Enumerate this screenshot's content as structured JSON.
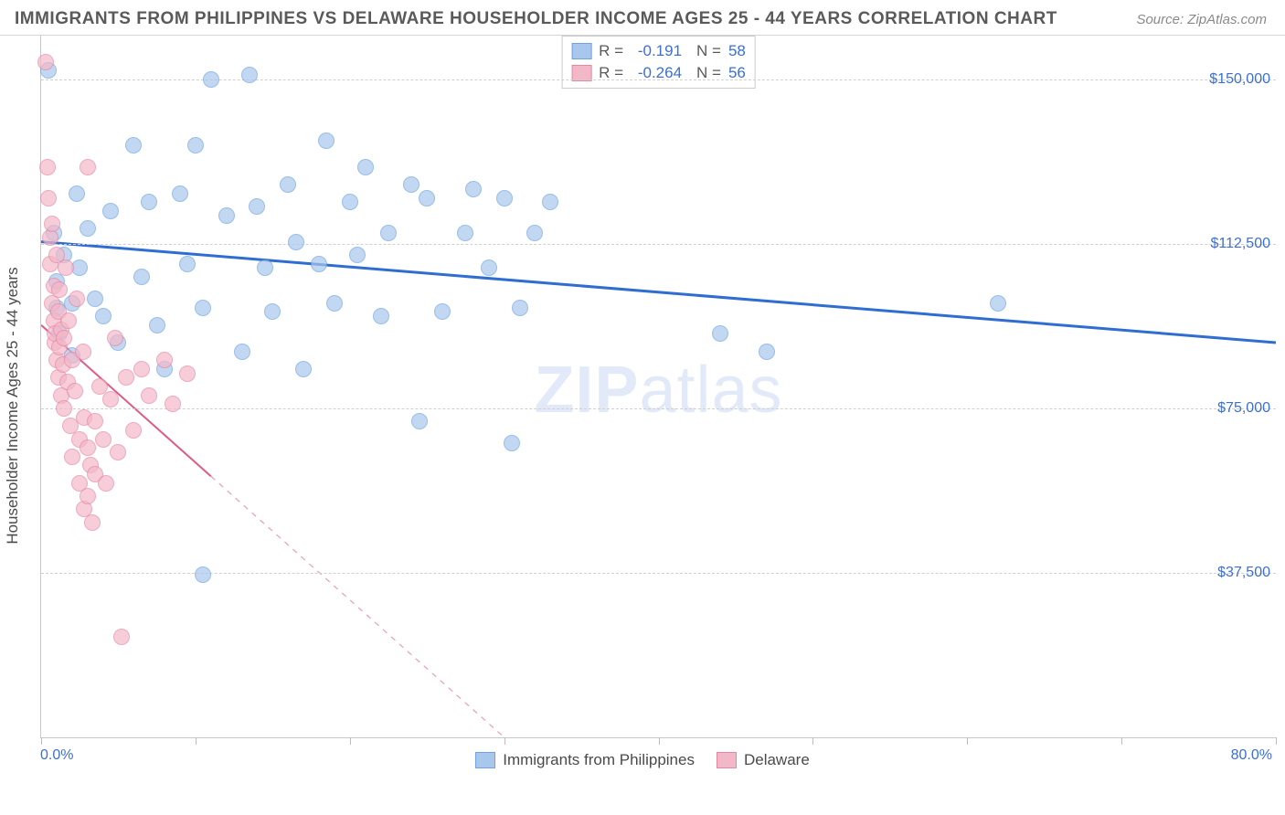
{
  "header": {
    "title": "IMMIGRANTS FROM PHILIPPINES VS DELAWARE HOUSEHOLDER INCOME AGES 25 - 44 YEARS CORRELATION CHART",
    "source": "Source: ZipAtlas.com"
  },
  "watermark": {
    "zip": "ZIP",
    "atlas": "atlas"
  },
  "chart": {
    "type": "scatter",
    "background_color": "#ffffff",
    "grid_color": "#d0d0d0",
    "axis_color": "#c9c9c9",
    "label_color": "#3b6fd6",
    "text_color": "#5a5a5a",
    "yaxis_title": "Householder Income Ages 25 - 44 years",
    "xlim": [
      0,
      80
    ],
    "ylim": [
      0,
      160000
    ],
    "xticks_pct": [
      0,
      10,
      20,
      30,
      40,
      50,
      60,
      70,
      80
    ],
    "yticks": [
      37500,
      75000,
      112500,
      150000
    ],
    "ytick_labels": [
      "$37,500",
      "$75,000",
      "$112,500",
      "$150,000"
    ],
    "xlabels": {
      "min": "0.0%",
      "max": "80.0%"
    },
    "marker_radius": 9,
    "marker_opacity": 0.35,
    "series": [
      {
        "name": "Immigrants from Philippines",
        "fill": "#a9c7ec",
        "stroke": "#6ea3df",
        "line_color": "#2f6ed0",
        "line_width": 3,
        "r": -0.191,
        "n": 58,
        "trend": {
          "x1": 0,
          "y1": 113000,
          "x2": 80,
          "y2": 90000,
          "dashed_from_x": null
        },
        "points": [
          {
            "x": 0.5,
            "y": 152000
          },
          {
            "x": 0.8,
            "y": 115000
          },
          {
            "x": 1.0,
            "y": 104000
          },
          {
            "x": 1.0,
            "y": 98000
          },
          {
            "x": 1.2,
            "y": 92000
          },
          {
            "x": 1.5,
            "y": 110000
          },
          {
            "x": 2.0,
            "y": 99000
          },
          {
            "x": 2.0,
            "y": 87000
          },
          {
            "x": 2.3,
            "y": 124000
          },
          {
            "x": 2.5,
            "y": 107000
          },
          {
            "x": 3.0,
            "y": 116000
          },
          {
            "x": 3.5,
            "y": 100000
          },
          {
            "x": 4.0,
            "y": 96000
          },
          {
            "x": 4.5,
            "y": 120000
          },
          {
            "x": 5.0,
            "y": 90000
          },
          {
            "x": 6.0,
            "y": 135000
          },
          {
            "x": 6.5,
            "y": 105000
          },
          {
            "x": 7.0,
            "y": 122000
          },
          {
            "x": 7.5,
            "y": 94000
          },
          {
            "x": 8.0,
            "y": 84000
          },
          {
            "x": 9.0,
            "y": 124000
          },
          {
            "x": 9.5,
            "y": 108000
          },
          {
            "x": 10.0,
            "y": 135000
          },
          {
            "x": 10.5,
            "y": 98000
          },
          {
            "x": 10.5,
            "y": 37000
          },
          {
            "x": 11.0,
            "y": 150000
          },
          {
            "x": 12.0,
            "y": 119000
          },
          {
            "x": 13.0,
            "y": 88000
          },
          {
            "x": 14.0,
            "y": 121000
          },
          {
            "x": 14.5,
            "y": 107000
          },
          {
            "x": 15.0,
            "y": 97000
          },
          {
            "x": 16.0,
            "y": 126000
          },
          {
            "x": 16.5,
            "y": 113000
          },
          {
            "x": 17.0,
            "y": 84000
          },
          {
            "x": 18.0,
            "y": 108000
          },
          {
            "x": 18.5,
            "y": 136000
          },
          {
            "x": 19.0,
            "y": 99000
          },
          {
            "x": 20.0,
            "y": 122000
          },
          {
            "x": 20.5,
            "y": 110000
          },
          {
            "x": 21.0,
            "y": 130000
          },
          {
            "x": 22.0,
            "y": 96000
          },
          {
            "x": 22.5,
            "y": 115000
          },
          {
            "x": 24.0,
            "y": 126000
          },
          {
            "x": 24.5,
            "y": 72000
          },
          {
            "x": 25.0,
            "y": 123000
          },
          {
            "x": 26.0,
            "y": 97000
          },
          {
            "x": 27.5,
            "y": 115000
          },
          {
            "x": 28.0,
            "y": 125000
          },
          {
            "x": 29.0,
            "y": 107000
          },
          {
            "x": 30.0,
            "y": 123000
          },
          {
            "x": 30.5,
            "y": 67000
          },
          {
            "x": 31.0,
            "y": 98000
          },
          {
            "x": 32.0,
            "y": 115000
          },
          {
            "x": 33.0,
            "y": 122000
          },
          {
            "x": 44.0,
            "y": 92000
          },
          {
            "x": 47.0,
            "y": 88000
          },
          {
            "x": 62.0,
            "y": 99000
          },
          {
            "x": 13.5,
            "y": 151000
          }
        ]
      },
      {
        "name": "Delaware",
        "fill": "#f3b8c8",
        "stroke": "#e986a4",
        "line_color": "#e05a86",
        "line_width": 2,
        "r": -0.264,
        "n": 56,
        "trend": {
          "x1": 0,
          "y1": 94000,
          "x2": 30,
          "y2": 0,
          "dashed_from_x": 11
        },
        "points": [
          {
            "x": 0.3,
            "y": 154000
          },
          {
            "x": 0.4,
            "y": 130000
          },
          {
            "x": 0.5,
            "y": 123000
          },
          {
            "x": 0.6,
            "y": 108000
          },
          {
            "x": 0.6,
            "y": 114000
          },
          {
            "x": 0.7,
            "y": 117000
          },
          {
            "x": 0.7,
            "y": 99000
          },
          {
            "x": 0.8,
            "y": 103000
          },
          {
            "x": 0.8,
            "y": 95000
          },
          {
            "x": 0.9,
            "y": 90000
          },
          {
            "x": 0.9,
            "y": 92000
          },
          {
            "x": 1.0,
            "y": 110000
          },
          {
            "x": 1.0,
            "y": 86000
          },
          {
            "x": 1.1,
            "y": 97000
          },
          {
            "x": 1.1,
            "y": 82000
          },
          {
            "x": 1.2,
            "y": 89000
          },
          {
            "x": 1.2,
            "y": 102000
          },
          {
            "x": 1.3,
            "y": 78000
          },
          {
            "x": 1.3,
            "y": 93000
          },
          {
            "x": 1.4,
            "y": 85000
          },
          {
            "x": 1.5,
            "y": 75000
          },
          {
            "x": 1.5,
            "y": 91000
          },
          {
            "x": 1.6,
            "y": 107000
          },
          {
            "x": 1.7,
            "y": 81000
          },
          {
            "x": 1.8,
            "y": 95000
          },
          {
            "x": 1.9,
            "y": 71000
          },
          {
            "x": 2.0,
            "y": 86000
          },
          {
            "x": 2.0,
            "y": 64000
          },
          {
            "x": 2.2,
            "y": 79000
          },
          {
            "x": 2.3,
            "y": 100000
          },
          {
            "x": 2.5,
            "y": 68000
          },
          {
            "x": 2.5,
            "y": 58000
          },
          {
            "x": 2.7,
            "y": 88000
          },
          {
            "x": 2.8,
            "y": 73000
          },
          {
            "x": 2.8,
            "y": 52000
          },
          {
            "x": 3.0,
            "y": 66000
          },
          {
            "x": 3.0,
            "y": 55000
          },
          {
            "x": 3.2,
            "y": 62000
          },
          {
            "x": 3.3,
            "y": 49000
          },
          {
            "x": 3.5,
            "y": 72000
          },
          {
            "x": 3.5,
            "y": 60000
          },
          {
            "x": 3.8,
            "y": 80000
          },
          {
            "x": 4.0,
            "y": 68000
          },
          {
            "x": 4.2,
            "y": 58000
          },
          {
            "x": 4.5,
            "y": 77000
          },
          {
            "x": 4.8,
            "y": 91000
          },
          {
            "x": 5.0,
            "y": 65000
          },
          {
            "x": 5.2,
            "y": 23000
          },
          {
            "x": 5.5,
            "y": 82000
          },
          {
            "x": 6.0,
            "y": 70000
          },
          {
            "x": 6.5,
            "y": 84000
          },
          {
            "x": 7.0,
            "y": 78000
          },
          {
            "x": 8.0,
            "y": 86000
          },
          {
            "x": 8.5,
            "y": 76000
          },
          {
            "x": 9.5,
            "y": 83000
          },
          {
            "x": 3.0,
            "y": 130000
          }
        ]
      }
    ],
    "legend_top": {
      "rows": [
        {
          "swatch_fill": "#a9c7ec",
          "swatch_stroke": "#6ea3df",
          "r_label": "R =",
          "r_val": "-0.191",
          "n_label": "N =",
          "n_val": "58"
        },
        {
          "swatch_fill": "#f3b8c8",
          "swatch_stroke": "#e986a4",
          "r_label": "R =",
          "r_val": "-0.264",
          "n_label": "N =",
          "n_val": "56"
        }
      ]
    },
    "legend_bottom": [
      {
        "swatch_fill": "#a9c7ec",
        "swatch_stroke": "#6ea3df",
        "label": "Immigrants from Philippines"
      },
      {
        "swatch_fill": "#f3b8c8",
        "swatch_stroke": "#e986a4",
        "label": "Delaware"
      }
    ]
  }
}
